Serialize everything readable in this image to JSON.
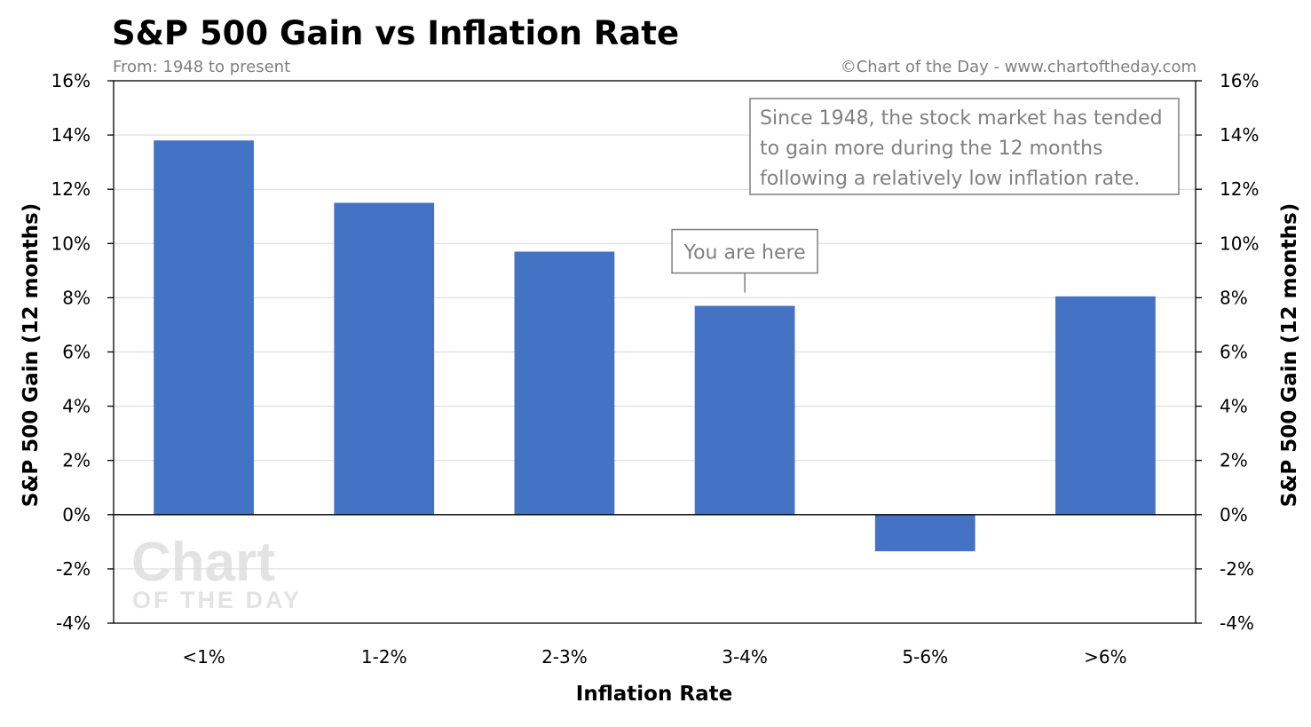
{
  "header": {
    "title": "S&P 500 Gain vs Inflation Rate",
    "subtitle": "From: 1948 to present",
    "credit": "©Chart of the Day - www.chartoftheday.com"
  },
  "watermark": {
    "line1": "Chart",
    "line2": "OF THE DAY"
  },
  "chart_data": {
    "type": "bar",
    "categories": [
      "<1%",
      "1-2%",
      "2-3%",
      "3-4%",
      "5-6%",
      ">6%"
    ],
    "values": [
      13.8,
      11.5,
      9.7,
      7.7,
      -1.35,
      8.05
    ],
    "xlabel": "Inflation Rate",
    "ylabel": "S&P 500 Gain (12 months)",
    "ylabel_right": "S&P 500 Gain (12 months)",
    "ylim": [
      -4,
      16
    ],
    "yticks": [
      -4,
      -2,
      0,
      2,
      4,
      6,
      8,
      10,
      12,
      14,
      16
    ],
    "ytick_labels": [
      "-4%",
      "-2%",
      "0%",
      "2%",
      "4%",
      "6%",
      "8%",
      "10%",
      "12%",
      "14%",
      "16%"
    ],
    "grid": true,
    "bar_color": "#4472c4",
    "annotations": [
      {
        "category": "3-4%",
        "text": "You are here"
      }
    ],
    "note": [
      "Since 1948, the stock market has tended",
      "to gain more during the 12 months",
      "following a relatively low inflation rate."
    ]
  }
}
